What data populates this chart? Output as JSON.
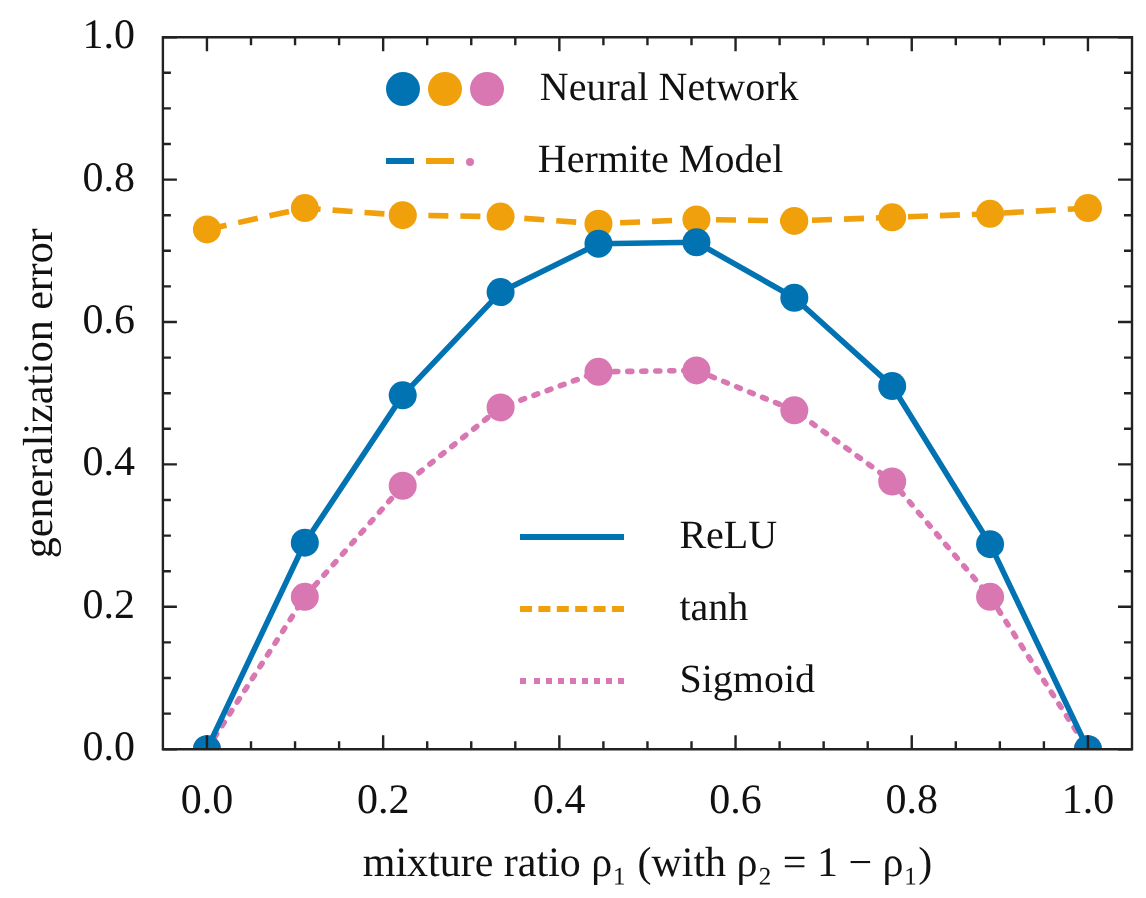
{
  "chart_data": {
    "type": "line",
    "xlabel": "mixture ratio ρ₁ (with ρ₂ = 1 − ρ₁)",
    "ylabel": "generalization error",
    "x": [
      0,
      0.1111,
      0.2222,
      0.3333,
      0.4444,
      0.5556,
      0.6667,
      0.7778,
      0.8889,
      1
    ],
    "series": [
      {
        "name": "ReLU",
        "color": "#0173b2",
        "line_style": "solid",
        "values": [
          0,
          0.29,
          0.497,
          0.642,
          0.71,
          0.712,
          0.634,
          0.51,
          0.288,
          0
        ]
      },
      {
        "name": "tanh",
        "color": "#f0a00a",
        "line_style": "dashed",
        "values": [
          0.73,
          0.76,
          0.75,
          0.748,
          0.738,
          0.744,
          0.742,
          0.747,
          0.752,
          0.76
        ]
      },
      {
        "name": "Sigmoid",
        "color": "#d977b3",
        "line_style": "dotted",
        "values": [
          0,
          0.214,
          0.37,
          0.48,
          0.53,
          0.532,
          0.476,
          0.376,
          0.214,
          0
        ]
      }
    ],
    "marker": "circle",
    "legend": "bottom",
    "grid": false,
    "annotations": [
      "Neural Network",
      "Hermite Model"
    ],
    "xlim": [
      -0.05,
      1.05
    ],
    "xticks": [
      {
        "value": 0,
        "label": "0.0"
      },
      {
        "value": 0.05,
        "label": null
      },
      {
        "value": 0.1,
        "label": null
      },
      {
        "value": 0.15,
        "label": null
      },
      {
        "value": 0.2,
        "label": "0.2"
      },
      {
        "value": 0.25,
        "label": null
      },
      {
        "value": 0.3,
        "label": null
      },
      {
        "value": 0.35,
        "label": null
      },
      {
        "value": 0.4,
        "label": "0.4"
      },
      {
        "value": 0.45,
        "label": null
      },
      {
        "value": 0.5,
        "label": null
      },
      {
        "value": 0.55,
        "label": null
      },
      {
        "value": 0.6,
        "label": "0.6"
      },
      {
        "value": 0.65,
        "label": null
      },
      {
        "value": 0.7,
        "label": null
      },
      {
        "value": 0.75,
        "label": null
      },
      {
        "value": 0.8,
        "label": "0.8"
      },
      {
        "value": 0.85,
        "label": null
      },
      {
        "value": 0.9,
        "label": null
      },
      {
        "value": 0.95,
        "label": null
      },
      {
        "value": 1,
        "label": "1.0"
      }
    ],
    "ylim": [
      0,
      1
    ],
    "yticks": [
      {
        "value": 0,
        "label": "0.0"
      },
      {
        "value": 0.05,
        "label": null
      },
      {
        "value": 0.1,
        "label": null
      },
      {
        "value": 0.15,
        "label": null
      },
      {
        "value": 0.2,
        "label": "0.2"
      },
      {
        "value": 0.25,
        "label": null
      },
      {
        "value": 0.3,
        "label": null
      },
      {
        "value": 0.35,
        "label": null
      },
      {
        "value": 0.4,
        "label": "0.4"
      },
      {
        "value": 0.45,
        "label": null
      },
      {
        "value": 0.5,
        "label": null
      },
      {
        "value": 0.55,
        "label": null
      },
      {
        "value": 0.6,
        "label": "0.6"
      },
      {
        "value": 0.65,
        "label": null
      },
      {
        "value": 0.7,
        "label": null
      },
      {
        "value": 0.75,
        "label": null
      },
      {
        "value": 0.8,
        "label": "0.8"
      },
      {
        "value": 0.85,
        "label": null
      },
      {
        "value": 0.9,
        "label": null
      },
      {
        "value": 0.95,
        "label": null
      },
      {
        "value": 1,
        "label": "1.0"
      }
    ]
  }
}
